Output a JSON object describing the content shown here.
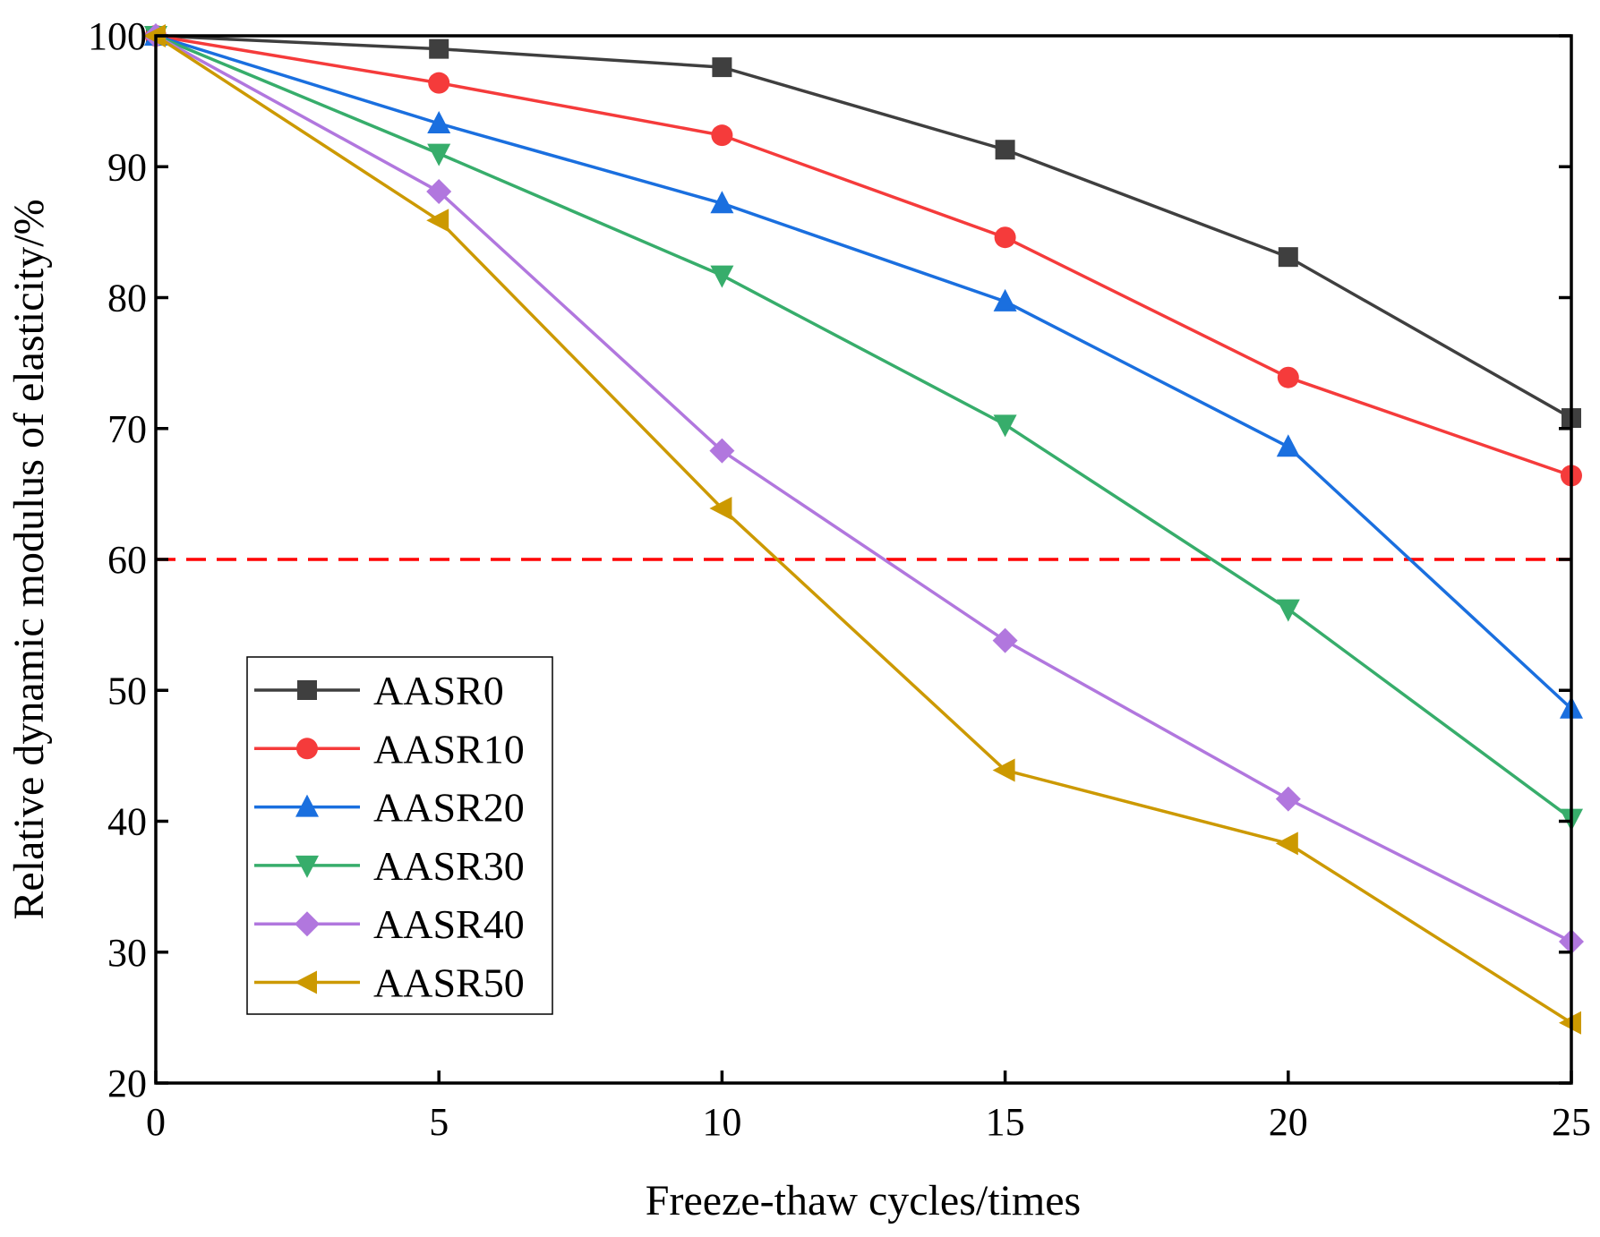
{
  "chart_data": {
    "type": "line",
    "title": "",
    "xlabel": "Freeze-thaw cycles/times",
    "ylabel": "Relative dynamic modulus of elasticity/%",
    "xlim": [
      0,
      25
    ],
    "ylim": [
      20,
      100
    ],
    "xticks": [
      0,
      5,
      10,
      15,
      20,
      25
    ],
    "yticks": [
      20,
      30,
      40,
      50,
      60,
      70,
      80,
      90,
      100
    ],
    "grid": false,
    "legend_position": "bottom-left",
    "x": [
      0,
      5,
      10,
      15,
      20,
      25
    ],
    "series": [
      {
        "name": "AASR0",
        "color": "#3f3f3f",
        "marker": "square",
        "values": [
          100,
          99.0,
          97.6,
          91.3,
          83.1,
          70.8
        ]
      },
      {
        "name": "AASR10",
        "color": "#f53b3b",
        "marker": "circle",
        "values": [
          100,
          96.4,
          92.4,
          84.6,
          73.9,
          66.4
        ]
      },
      {
        "name": "AASR20",
        "color": "#1a6fdf",
        "marker": "triangle-up",
        "values": [
          100,
          93.3,
          87.2,
          79.7,
          68.6,
          48.6
        ]
      },
      {
        "name": "AASR30",
        "color": "#37ad6b",
        "marker": "triangle-down",
        "values": [
          100,
          91.0,
          81.7,
          70.3,
          56.2,
          40.2
        ]
      },
      {
        "name": "AASR40",
        "color": "#b177de",
        "marker": "diamond",
        "values": [
          100,
          88.1,
          68.3,
          53.8,
          41.7,
          30.8
        ]
      },
      {
        "name": "AASR50",
        "color": "#cc9900",
        "marker": "triangle-left",
        "values": [
          100,
          85.9,
          63.9,
          43.9,
          38.3,
          24.6
        ]
      }
    ],
    "reference_line": {
      "y": 60,
      "color": "#ff0000",
      "style": "dashed"
    }
  }
}
